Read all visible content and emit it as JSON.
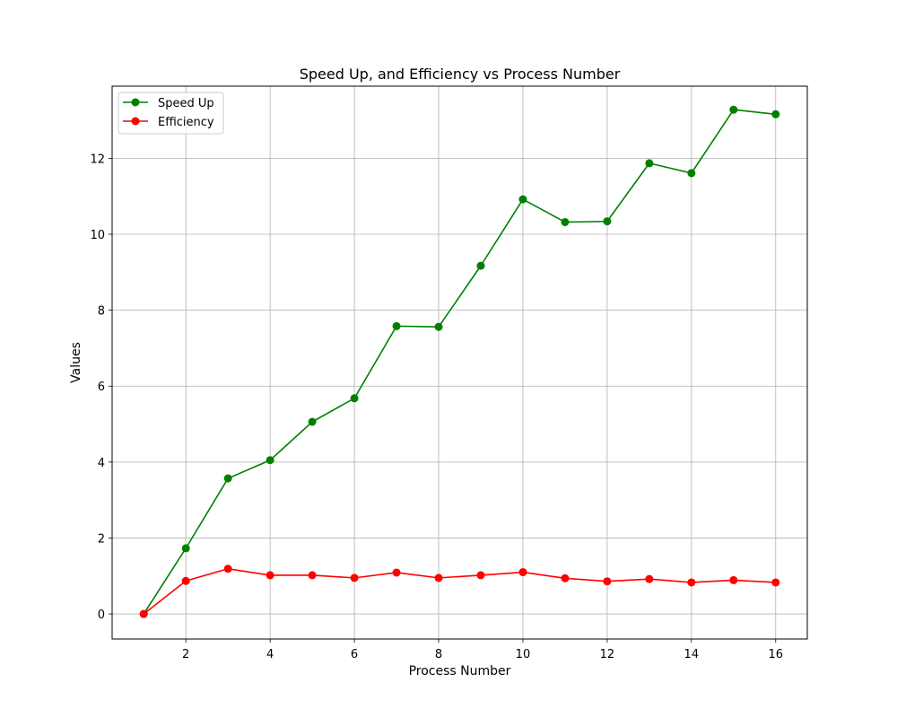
{
  "chart_data": {
    "type": "line",
    "title": "Speed Up, and Efficiency vs Process Number",
    "xlabel": "Process Number",
    "ylabel": "Values",
    "x": [
      1,
      2,
      3,
      4,
      5,
      6,
      7,
      8,
      9,
      10,
      11,
      12,
      13,
      14,
      15,
      16
    ],
    "xlim": [
      0.25,
      16.75
    ],
    "ylim": [
      -0.66,
      13.9
    ],
    "xticks": [
      2,
      4,
      6,
      8,
      10,
      12,
      14,
      16
    ],
    "yticks": [
      0,
      2,
      4,
      6,
      8,
      10,
      12
    ],
    "grid": true,
    "legend_position": "top-left",
    "series": [
      {
        "name": "Speed Up",
        "color": "#008000",
        "values": [
          0.0,
          1.73,
          3.57,
          4.05,
          5.06,
          5.68,
          7.58,
          7.56,
          9.17,
          10.92,
          10.32,
          10.34,
          11.87,
          11.61,
          13.28,
          13.16
        ]
      },
      {
        "name": "Efficiency",
        "color": "#ff0000",
        "values": [
          0.0,
          0.87,
          1.19,
          1.02,
          1.02,
          0.95,
          1.09,
          0.95,
          1.02,
          1.1,
          0.94,
          0.86,
          0.92,
          0.83,
          0.89,
          0.83
        ]
      }
    ]
  }
}
